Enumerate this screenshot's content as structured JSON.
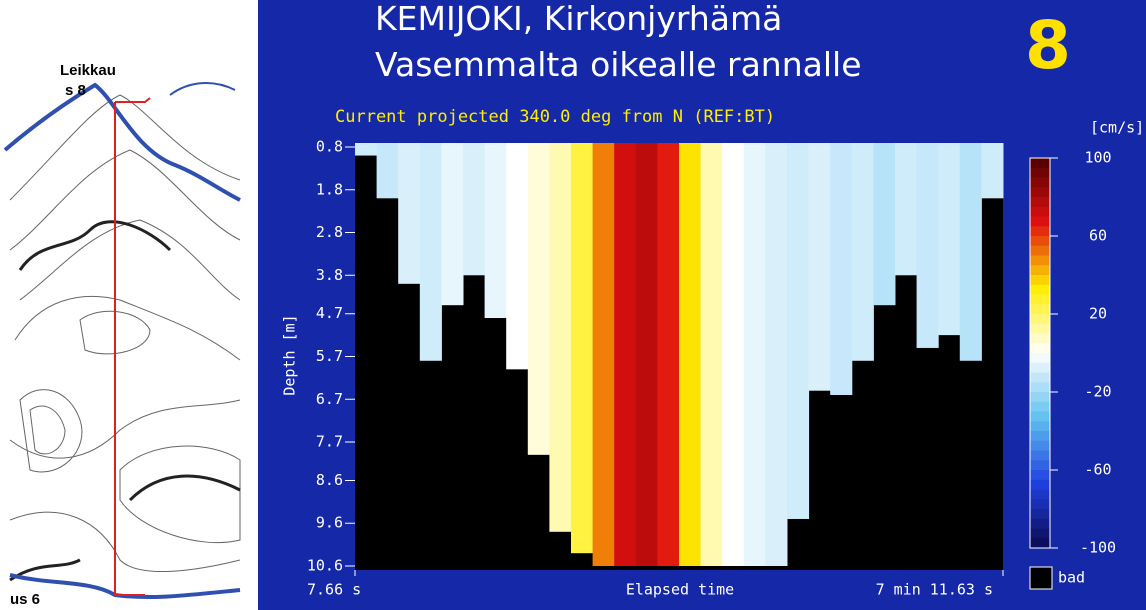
{
  "map": {
    "labels": [
      "Leikkau",
      "s 8",
      "us 6"
    ]
  },
  "chart_data": {
    "type": "heatmap",
    "title": [
      "KEMIJOKI, Kirkonjyrhämä",
      "Vasemmalta oikealle rannalle"
    ],
    "badge": "8",
    "subtitle": "Current projected 340.0 deg from N (REF:BT)",
    "xlabel": "Elapsed time",
    "ylabel": "Depth [m]",
    "colorbar_label": "[cm/s]",
    "bad_label": "bad",
    "xlim": [
      7.66,
      431.63
    ],
    "xticks": [
      {
        "value": 7.66,
        "label": "7.66 s"
      },
      {
        "value": 431.63,
        "label": "7 min 11.63 s"
      }
    ],
    "ylim": [
      0.8,
      10.6
    ],
    "yticks": [
      0.8,
      1.8,
      2.8,
      3.8,
      4.7,
      5.7,
      6.7,
      7.7,
      8.6,
      9.6,
      10.6
    ],
    "clim": [
      -100,
      100
    ],
    "cticks": [
      100,
      60,
      20,
      -20,
      -60,
      -100
    ],
    "colorscale": [
      "#0a0a50",
      "#2040e0",
      "#60c0f0",
      "#ffffff",
      "#ffee00",
      "#e01010",
      "#500000"
    ],
    "bad_color": "#000000",
    "x": [
      14.73,
      28.86,
      42.99,
      57.13,
      71.26,
      85.39,
      99.52,
      113.65,
      127.78,
      141.92,
      156.05,
      170.18,
      184.31,
      198.44,
      212.57,
      226.71,
      240.84,
      254.97,
      269.1,
      283.23,
      297.37,
      311.5,
      325.63,
      339.76,
      353.89,
      368.02,
      382.16,
      396.29,
      410.42,
      424.55
    ],
    "bottom_depth": [
      1.0,
      2.0,
      4.0,
      5.8,
      4.5,
      3.8,
      4.8,
      6.0,
      8.0,
      9.8,
      10.3,
      10.6,
      10.6,
      10.6,
      10.6,
      10.6,
      10.6,
      10.6,
      10.6,
      10.6,
      9.5,
      6.5,
      6.6,
      5.8,
      4.5,
      3.8,
      5.5,
      5.2,
      5.8,
      2.0
    ],
    "velocity": [
      -10,
      -12,
      -8,
      -10,
      -5,
      -8,
      -5,
      0,
      5,
      10,
      25,
      50,
      70,
      75,
      65,
      35,
      10,
      0,
      -5,
      -8,
      -10,
      -8,
      -12,
      -10,
      -15,
      -10,
      -12,
      -10,
      -15,
      -10
    ]
  }
}
